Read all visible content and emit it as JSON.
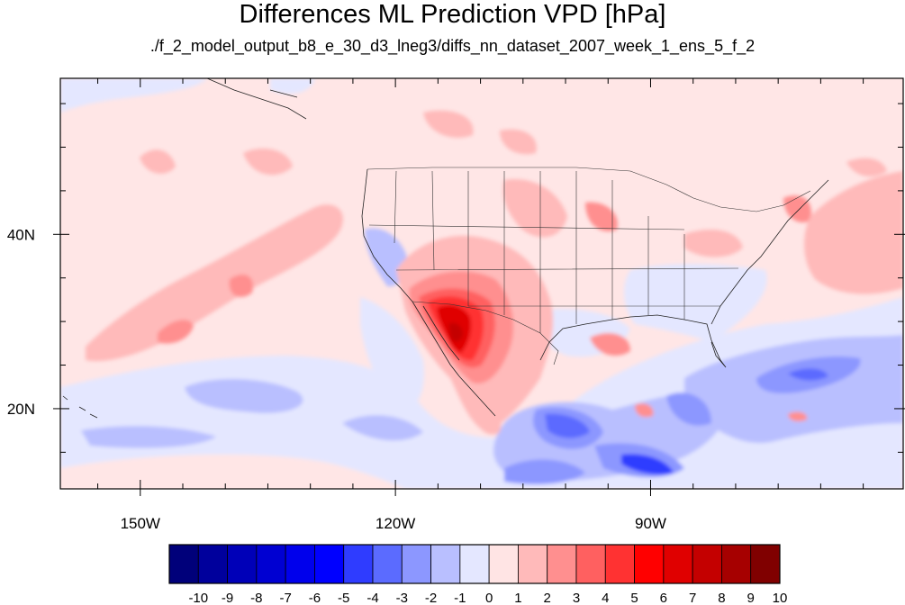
{
  "map": {
    "title": "Differences ML Prediction VPD [hPa]",
    "subtitle": "./f_2_model_output_b8_e_30_d3_lneg3/diffs_nn_dataset_2007_week_1_ens_5_f_2",
    "lon_range": [
      -159.4,
      -60.3
    ],
    "lat_range": [
      10.8,
      57.9
    ],
    "x_ticks": [
      {
        "lon": -150,
        "label": "150W"
      },
      {
        "lon": -120,
        "label": "120W"
      },
      {
        "lon": -90,
        "label": "90W"
      }
    ],
    "y_ticks": [
      {
        "lat": 20,
        "label": "20N"
      },
      {
        "lat": 40,
        "label": "40N"
      }
    ],
    "colorbar": {
      "levels": [
        -10,
        -9,
        -8,
        -7,
        -6,
        -5,
        -4,
        -3,
        -2,
        -1,
        0,
        1,
        2,
        3,
        4,
        5,
        6,
        7,
        8,
        9,
        10
      ],
      "colors": [
        "#00007a",
        "#00009c",
        "#0000b8",
        "#0000d2",
        "#0000ec",
        "#0000ff",
        "#2f3cff",
        "#5b6bff",
        "#8c97ff",
        "#b9bfff",
        "#e4e7ff",
        "#ffe4e4",
        "#ffbaba",
        "#ff8f8f",
        "#ff6060",
        "#ff3232",
        "#ff0000",
        "#e00000",
        "#c40000",
        "#a60000",
        "#800000"
      ]
    },
    "background_color": "#ffe6e6"
  }
}
